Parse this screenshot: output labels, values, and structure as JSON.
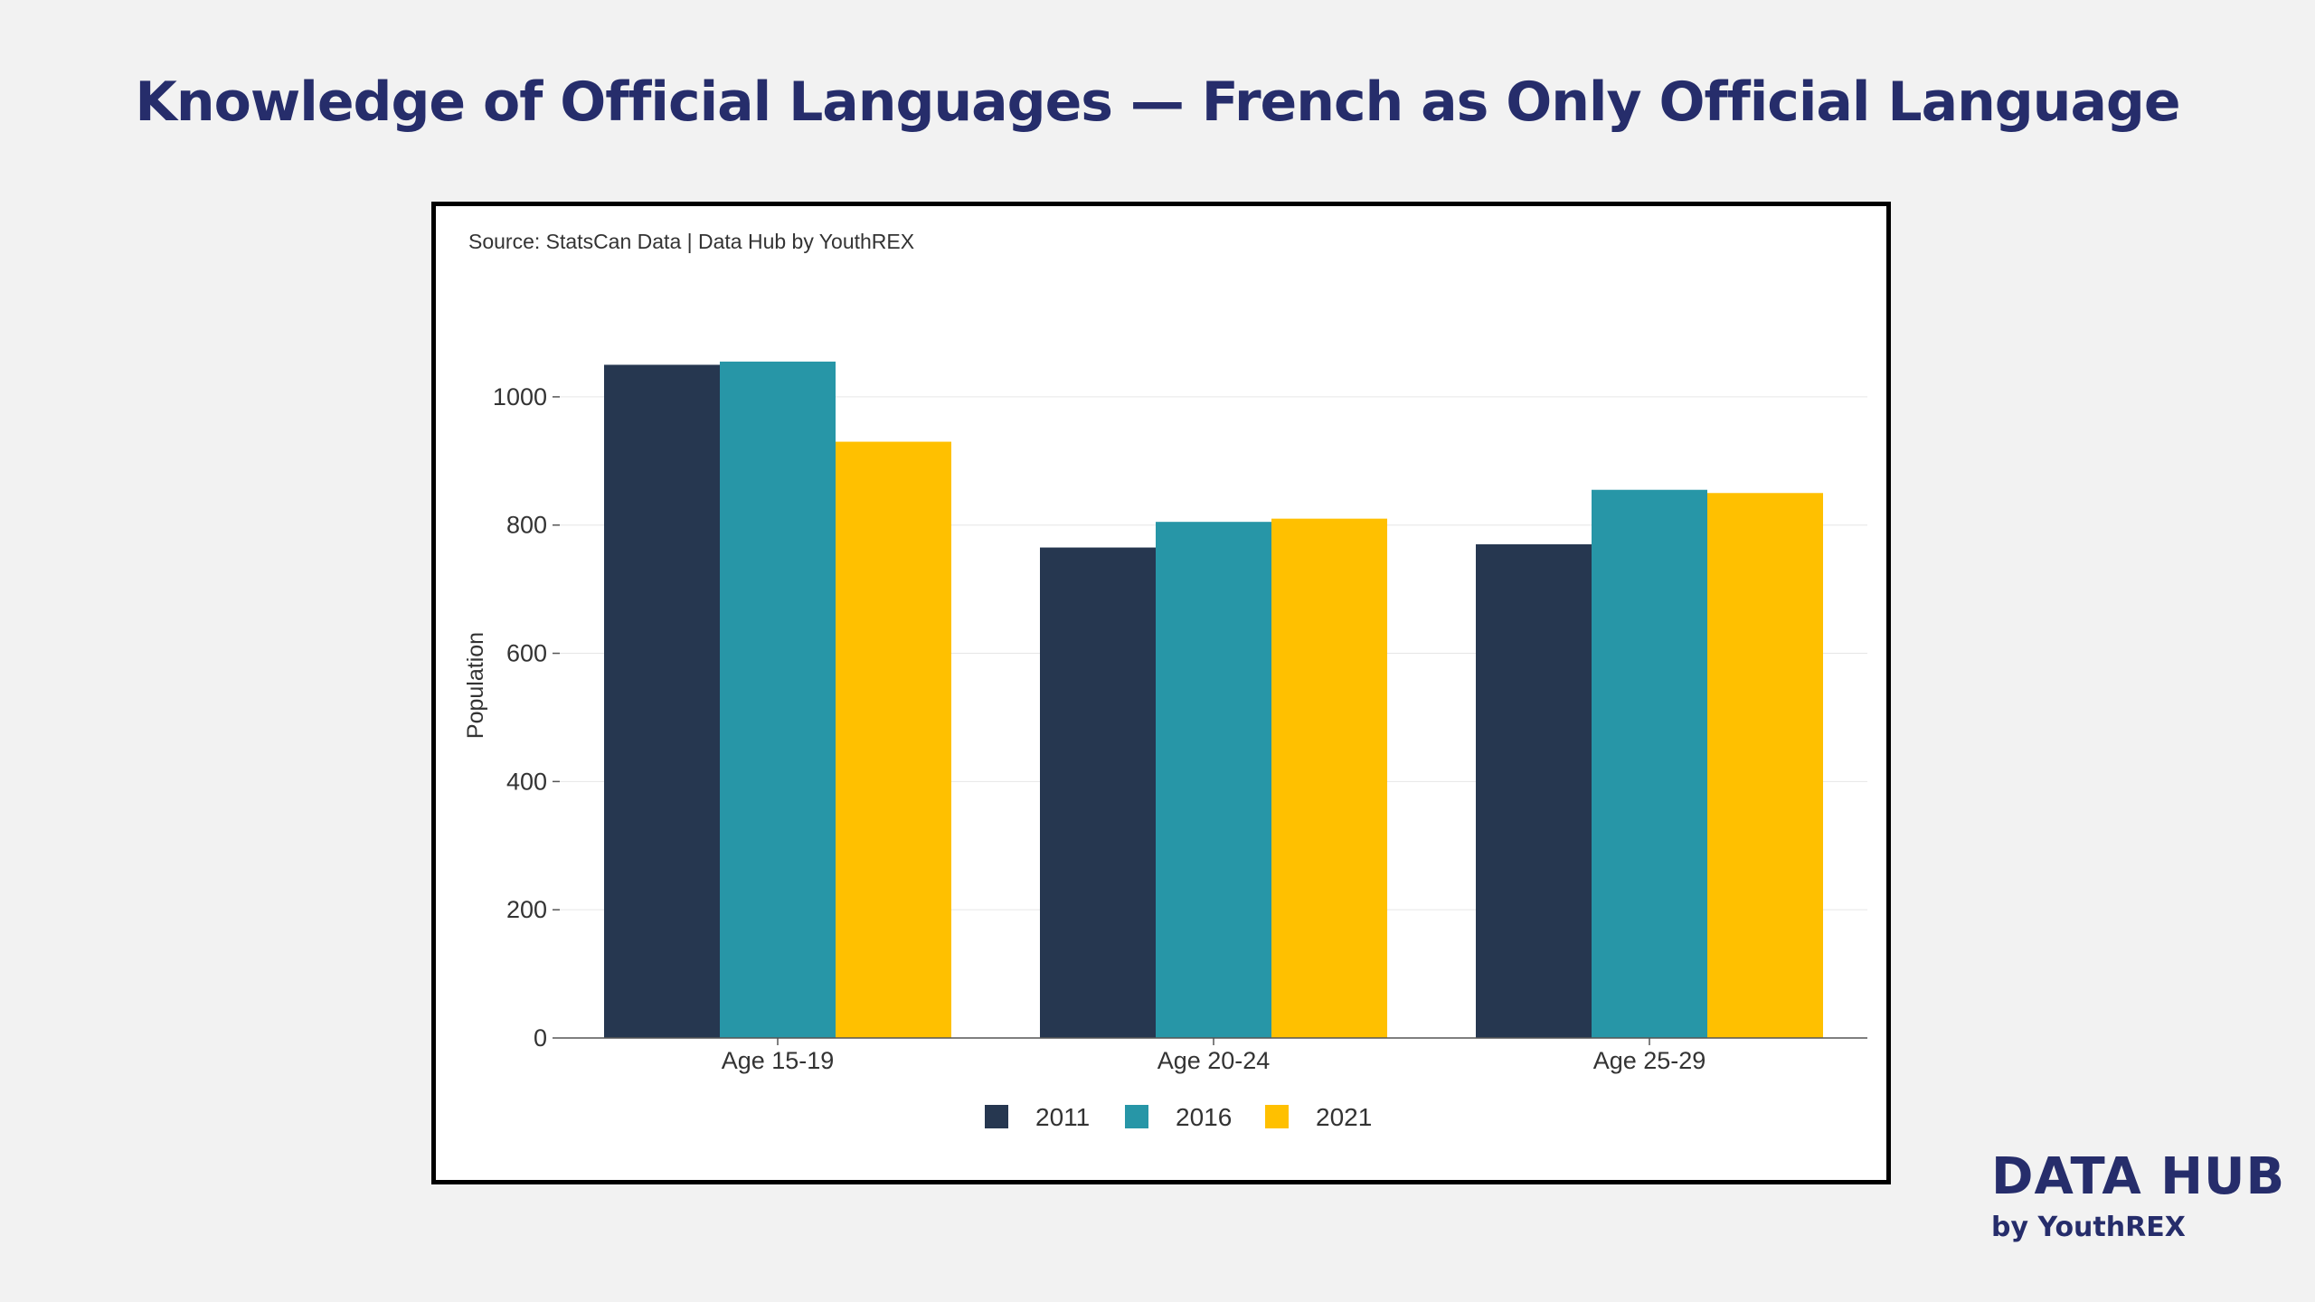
{
  "title": "Knowledge of Official Languages — French as Only Official Language",
  "source_note": "Source: StatsCan Data | Data Hub by YouthREX",
  "brand": {
    "name": "DATA HUB",
    "sub": "by YouthREX"
  },
  "chart_data": {
    "type": "bar",
    "categories": [
      "Age 15-19",
      "Age 20-24",
      "Age 25-29"
    ],
    "series": [
      {
        "name": "2011",
        "color": "#263750",
        "values": [
          1050,
          765,
          770
        ]
      },
      {
        "name": "2016",
        "color": "#2796a7",
        "values": [
          1055,
          805,
          855
        ]
      },
      {
        "name": "2021",
        "color": "#ffc000",
        "values": [
          930,
          810,
          850
        ]
      }
    ],
    "xlabel": "",
    "ylabel": "Population",
    "ylim": [
      0,
      1100
    ],
    "yticks": [
      0,
      200,
      400,
      600,
      800,
      1000
    ],
    "grid": true,
    "legend": "bottom-center"
  }
}
